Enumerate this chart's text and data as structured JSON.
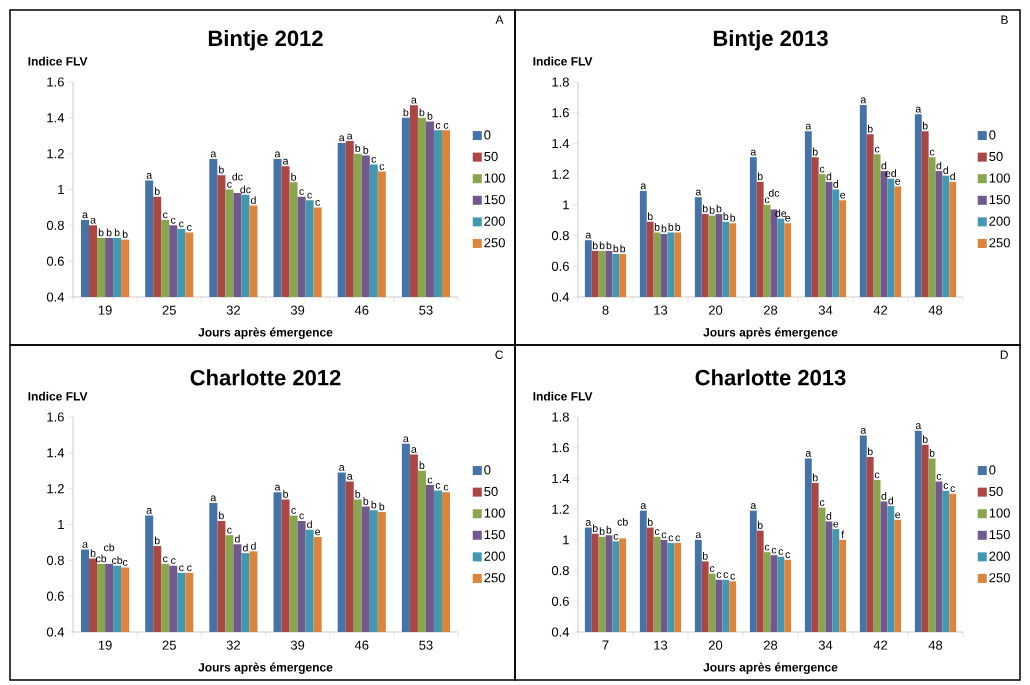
{
  "chart_data": [
    {
      "type": "bar",
      "title": "Bintje 2012",
      "xlabel": "Jours après émergence",
      "ylabel": "Indice FLV",
      "categories": [
        "19",
        "25",
        "32",
        "39",
        "46",
        "53"
      ],
      "ylim": [
        0.4,
        1.6
      ],
      "yticks": [
        0.4,
        0.6,
        0.8,
        1,
        1.2,
        1.4,
        1.6
      ],
      "legend": "right",
      "annotations": [
        "A"
      ],
      "series": [
        {
          "name": "0",
          "color": "#4572a7",
          "values": [
            0.83,
            1.05,
            1.17,
            1.17,
            1.26,
            1.4
          ],
          "value_labels": [
            "a",
            "a",
            "a",
            "a",
            "a",
            "b"
          ]
        },
        {
          "name": "50",
          "color": "#aa4643",
          "values": [
            0.8,
            0.96,
            1.08,
            1.13,
            1.27,
            1.47
          ],
          "value_labels": [
            "a",
            "b",
            "b",
            "a",
            "a",
            "a"
          ]
        },
        {
          "name": "100",
          "color": "#89a54e",
          "values": [
            0.73,
            0.83,
            1.0,
            1.04,
            1.2,
            1.4
          ],
          "value_labels": [
            "b",
            "c",
            "c",
            "b",
            "b",
            "b"
          ]
        },
        {
          "name": "150",
          "color": "#71588f",
          "values": [
            0.73,
            0.8,
            0.98,
            0.96,
            1.19,
            1.38
          ],
          "value_labels": [
            "b",
            "c",
            "dc",
            "c",
            "b",
            "b"
          ]
        },
        {
          "name": "200",
          "color": "#4198af",
          "values": [
            0.73,
            0.78,
            0.97,
            0.94,
            1.14,
            1.33
          ],
          "value_labels": [
            "b",
            "c",
            "dc",
            "c",
            "c",
            "c"
          ]
        },
        {
          "name": "250",
          "color": "#db843d",
          "values": [
            0.72,
            0.76,
            0.91,
            0.9,
            1.1,
            1.33
          ],
          "value_labels": [
            "b",
            "c",
            "d",
            "c",
            "c",
            "c"
          ]
        }
      ]
    },
    {
      "type": "bar",
      "title": "Bintje 2013",
      "xlabel": "Jours après émergence",
      "ylabel": "Indice FLV",
      "categories": [
        "8",
        "13",
        "20",
        "28",
        "34",
        "42",
        "48"
      ],
      "ylim": [
        0.4,
        1.8
      ],
      "yticks": [
        0.4,
        0.6,
        0.8,
        1,
        1.2,
        1.4,
        1.6,
        1.8
      ],
      "legend": "right",
      "annotations": [
        "B"
      ],
      "series": [
        {
          "name": "0",
          "color": "#4572a7",
          "values": [
            0.77,
            1.09,
            1.05,
            1.31,
            1.48,
            1.65,
            1.59
          ],
          "value_labels": [
            "a",
            "a",
            "a",
            "a",
            "a",
            "a",
            "a"
          ]
        },
        {
          "name": "50",
          "color": "#aa4643",
          "values": [
            0.7,
            0.89,
            0.94,
            1.15,
            1.31,
            1.46,
            1.48
          ],
          "value_labels": [
            "b",
            "b",
            "b",
            "b",
            "b",
            "b",
            "b"
          ]
        },
        {
          "name": "100",
          "color": "#89a54e",
          "values": [
            0.7,
            0.82,
            0.93,
            1.0,
            1.2,
            1.33,
            1.31
          ],
          "value_labels": [
            "b",
            "b",
            "b",
            "c",
            "c",
            "c",
            "c"
          ]
        },
        {
          "name": "150",
          "color": "#71588f",
          "values": [
            0.7,
            0.81,
            0.94,
            0.97,
            1.15,
            1.22,
            1.22
          ],
          "value_labels": [
            "b",
            "b",
            "b",
            "dc",
            "d",
            "d",
            "d"
          ]
        },
        {
          "name": "200",
          "color": "#4198af",
          "values": [
            0.68,
            0.82,
            0.89,
            0.91,
            1.1,
            1.17,
            1.19
          ],
          "value_labels": [
            "b",
            "b",
            "b",
            "de",
            "d",
            "ed",
            "d"
          ]
        },
        {
          "name": "250",
          "color": "#db843d",
          "values": [
            0.68,
            0.82,
            0.88,
            0.88,
            1.03,
            1.12,
            1.15
          ],
          "value_labels": [
            "b",
            "b",
            "b",
            "e",
            "e",
            "e",
            "d"
          ]
        }
      ]
    },
    {
      "type": "bar",
      "title": "Charlotte 2012",
      "xlabel": "Jours après émergence",
      "ylabel": "Indice FLV",
      "categories": [
        "19",
        "25",
        "32",
        "39",
        "46",
        "53"
      ],
      "ylim": [
        0.4,
        1.6
      ],
      "yticks": [
        0.4,
        0.6,
        0.8,
        1,
        1.2,
        1.4,
        1.6
      ],
      "legend": "right",
      "annotations": [
        "C"
      ],
      "series": [
        {
          "name": "0",
          "color": "#4572a7",
          "values": [
            0.86,
            1.05,
            1.12,
            1.18,
            1.29,
            1.45
          ],
          "value_labels": [
            "a",
            "a",
            "a",
            "a",
            "a",
            "a"
          ]
        },
        {
          "name": "50",
          "color": "#aa4643",
          "values": [
            0.81,
            0.88,
            1.02,
            1.14,
            1.24,
            1.39
          ],
          "value_labels": [
            "b",
            "b",
            "b",
            "b",
            "a",
            "a"
          ]
        },
        {
          "name": "100",
          "color": "#89a54e",
          "values": [
            0.78,
            0.78,
            0.94,
            1.05,
            1.14,
            1.3
          ],
          "value_labels": [
            "cb",
            "c",
            "c",
            "c",
            "b",
            "b"
          ]
        },
        {
          "name": "150",
          "color": "#71588f",
          "values": [
            0.78,
            0.77,
            0.89,
            1.02,
            1.1,
            1.22
          ],
          "value_labels": [
            "cb",
            "c",
            "d",
            "c",
            "b",
            "c"
          ]
        },
        {
          "name": "200",
          "color": "#4198af",
          "values": [
            0.77,
            0.73,
            0.84,
            0.97,
            1.08,
            1.19
          ],
          "value_labels": [
            "cb",
            "c",
            "d",
            "d",
            "b",
            "c"
          ]
        },
        {
          "name": "250",
          "color": "#db843d",
          "values": [
            0.76,
            0.73,
            0.85,
            0.93,
            1.07,
            1.18
          ],
          "value_labels": [
            "c",
            "c",
            "d",
            "e",
            "b",
            "c"
          ]
        }
      ]
    },
    {
      "type": "bar",
      "title": "Charlotte 2013",
      "xlabel": "Jours après émergence",
      "ylabel": "Indice FLV",
      "categories": [
        "7",
        "13",
        "20",
        "28",
        "34",
        "42",
        "48"
      ],
      "ylim": [
        0.4,
        1.8
      ],
      "yticks": [
        0.4,
        0.6,
        0.8,
        1,
        1.2,
        1.4,
        1.6,
        1.8
      ],
      "legend": "right",
      "annotations": [
        "D"
      ],
      "series": [
        {
          "name": "0",
          "color": "#4572a7",
          "values": [
            1.08,
            1.19,
            1.0,
            1.19,
            1.53,
            1.68,
            1.71
          ],
          "value_labels": [
            "a",
            "a",
            "a",
            "a",
            "a",
            "a",
            "a"
          ]
        },
        {
          "name": "50",
          "color": "#aa4643",
          "values": [
            1.04,
            1.08,
            0.86,
            1.06,
            1.37,
            1.54,
            1.62
          ],
          "value_labels": [
            "b",
            "b",
            "b",
            "b",
            "b",
            "b",
            "b"
          ]
        },
        {
          "name": "100",
          "color": "#89a54e",
          "values": [
            1.02,
            1.02,
            0.78,
            0.92,
            1.21,
            1.39,
            1.53
          ],
          "value_labels": [
            "b",
            "c",
            "c",
            "c",
            "c",
            "c",
            "b"
          ]
        },
        {
          "name": "150",
          "color": "#71588f",
          "values": [
            1.03,
            1.0,
            0.74,
            0.9,
            1.12,
            1.25,
            1.38
          ],
          "value_labels": [
            "b",
            "c",
            "c",
            "c",
            "d",
            "d",
            "c"
          ]
        },
        {
          "name": "200",
          "color": "#4198af",
          "values": [
            0.99,
            0.98,
            0.74,
            0.89,
            1.07,
            1.22,
            1.32
          ],
          "value_labels": [
            "c",
            "c",
            "c",
            "c",
            "e",
            "d",
            "c"
          ]
        },
        {
          "name": "250",
          "color": "#db843d",
          "values": [
            1.01,
            0.98,
            0.73,
            0.87,
            1.0,
            1.13,
            1.3
          ],
          "value_labels": [
            "cb",
            "c",
            "c",
            "c",
            "f",
            "e",
            "c"
          ]
        }
      ]
    }
  ]
}
